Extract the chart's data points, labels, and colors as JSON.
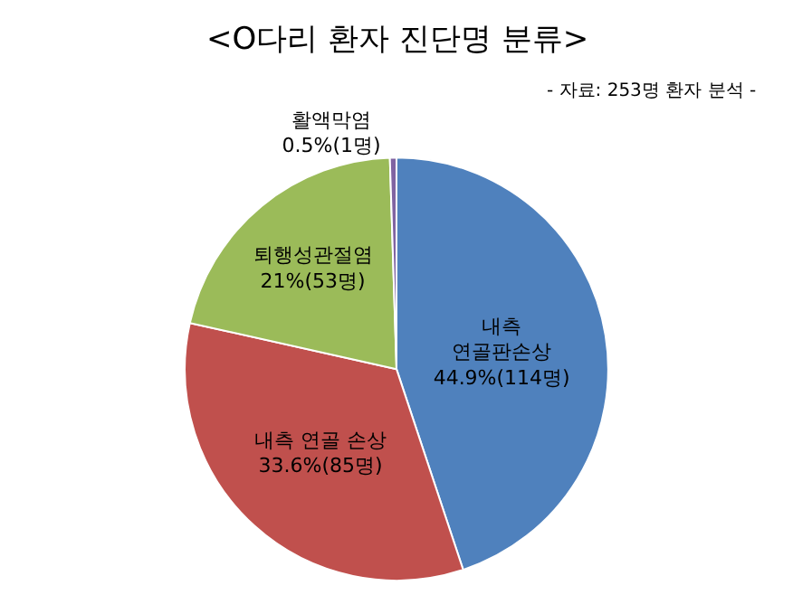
{
  "chart_data": {
    "type": "pie",
    "title": "<O다리 환자 진단명 분류>",
    "subtitle": "- 자료: 253명 환자 분석 -",
    "categories": [
      "내측\n연골판손상",
      "내측 연골 손상",
      "퇴행성관절염",
      "활액막염"
    ],
    "values": [
      44.9,
      33.6,
      21,
      0.5
    ],
    "value_labels": [
      "44.9%(114명)",
      "33.6%(85명)",
      "21%(53명)",
      "0.5%(1명)"
    ],
    "colors": [
      "#4f81bd",
      "#c0504d",
      "#9bbb59",
      "#8064a2"
    ]
  }
}
